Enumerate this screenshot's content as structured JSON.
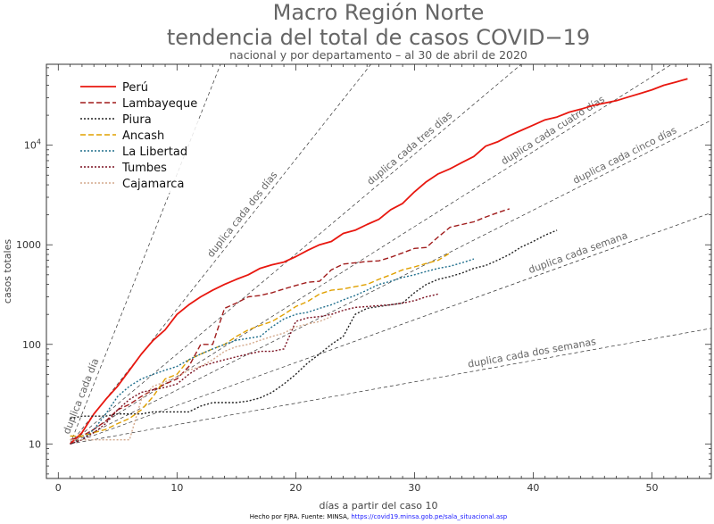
{
  "chart_data": {
    "type": "line",
    "title": "Macro Región Norte",
    "title2": "tendencia del total de casos COVID−19",
    "subtitle": "nacional y por departamento – al 30 de abril de 2020",
    "xlabel": "días a partir del caso 10",
    "ylabel": "casos totales",
    "xlim": [
      -1,
      55
    ],
    "ylim": [
      4.5,
      65000
    ],
    "yscale": "log",
    "xticks": [
      0,
      10,
      20,
      30,
      40,
      50
    ],
    "yticks": [
      {
        "value": 10,
        "label": "10"
      },
      {
        "value": 100,
        "label": "100"
      },
      {
        "value": 1000,
        "label": "1000"
      },
      {
        "value": 10000,
        "label": "10",
        "exponent": "4"
      }
    ],
    "grid": false,
    "legend": "top-left",
    "reference_lines": [
      {
        "label": "duplica cada día",
        "doubling_days": 1
      },
      {
        "label": "duplica cada dos días",
        "doubling_days": 2
      },
      {
        "label": "duplica cada tres días",
        "doubling_days": 3
      },
      {
        "label": "duplica cada cuatro días",
        "doubling_days": 4
      },
      {
        "label": "duplica cada cinco días",
        "doubling_days": 5
      },
      {
        "label": "duplica cada semana",
        "doubling_days": 7
      },
      {
        "label": "duplica cada dos semanas",
        "doubling_days": 14
      }
    ],
    "series": [
      {
        "name": "Perú",
        "color": "#e8170f",
        "dash": "solid",
        "x": [
          1,
          2,
          3,
          4,
          5,
          6,
          7,
          8,
          9,
          10,
          11,
          12,
          13,
          14,
          15,
          16,
          17,
          18,
          19,
          20,
          21,
          22,
          23,
          24,
          25,
          26,
          27,
          28,
          29,
          30,
          31,
          32,
          33,
          34,
          35,
          36,
          37,
          38,
          39,
          40,
          41,
          42,
          43,
          44,
          45,
          46,
          47,
          48,
          49,
          50,
          51,
          52,
          53
        ],
        "y": [
          10,
          13,
          20,
          28,
          38,
          55,
          80,
          110,
          140,
          200,
          250,
          300,
          350,
          400,
          450,
          500,
          580,
          630,
          670,
          760,
          880,
          1000,
          1080,
          1300,
          1400,
          1600,
          1800,
          2250,
          2600,
          3400,
          4300,
          5150,
          5800,
          6700,
          7700,
          9800,
          10800,
          12500,
          14100,
          15900,
          18000,
          19200,
          21400,
          23000,
          25000,
          26500,
          28000,
          30500,
          33000,
          36000,
          40000,
          43000,
          46500
        ]
      },
      {
        "name": "Lambayeque",
        "color": "#a01c1c",
        "dash": "6 3",
        "x": [
          1,
          2,
          3,
          4,
          5,
          6,
          7,
          8,
          9,
          10,
          11,
          12,
          13,
          14,
          15,
          16,
          17,
          18,
          19,
          20,
          21,
          22,
          23,
          24,
          25,
          26,
          27,
          28,
          29,
          30,
          31,
          32,
          33,
          34,
          35,
          36,
          37,
          38
        ],
        "y": [
          11,
          12,
          14,
          17,
          22,
          25,
          30,
          35,
          40,
          45,
          60,
          100,
          100,
          230,
          260,
          300,
          310,
          330,
          360,
          390,
          420,
          430,
          560,
          640,
          660,
          680,
          690,
          750,
          830,
          920,
          940,
          1200,
          1500,
          1600,
          1700,
          1900,
          2100,
          2300
        ]
      },
      {
        "name": "Piura",
        "color": "#222222",
        "dash": "2 2",
        "x": [
          1,
          2,
          3,
          4,
          5,
          6,
          7,
          8,
          9,
          10,
          11,
          12,
          13,
          14,
          15,
          16,
          17,
          18,
          19,
          20,
          21,
          22,
          23,
          24,
          25,
          26,
          27,
          28,
          29,
          30,
          31,
          32,
          33,
          34,
          35,
          36,
          37,
          38,
          39,
          40,
          41,
          42
        ],
        "y": [
          18,
          19,
          19,
          19,
          20,
          20,
          20,
          21,
          21,
          21,
          21,
          24,
          26,
          26,
          26,
          27,
          29,
          33,
          40,
          50,
          65,
          80,
          100,
          120,
          200,
          230,
          240,
          250,
          260,
          330,
          400,
          450,
          480,
          520,
          580,
          620,
          700,
          800,
          950,
          1080,
          1250,
          1400
        ]
      },
      {
        "name": "Ancash",
        "color": "#e0a000",
        "dash": "6 3",
        "x": [
          1,
          2,
          3,
          4,
          5,
          6,
          7,
          8,
          9,
          10,
          11,
          12,
          13,
          14,
          15,
          16,
          17,
          18,
          19,
          20,
          21,
          22,
          23,
          24,
          25,
          26,
          27,
          28,
          29,
          30,
          31,
          32,
          33
        ],
        "y": [
          12,
          12,
          13,
          14,
          16,
          18,
          22,
          30,
          45,
          50,
          70,
          80,
          90,
          100,
          120,
          140,
          155,
          170,
          200,
          240,
          270,
          320,
          350,
          360,
          380,
          400,
          450,
          500,
          560,
          600,
          650,
          700,
          830
        ]
      },
      {
        "name": "La Libertad",
        "color": "#1f6e8c",
        "dash": "2 2",
        "x": [
          1,
          2,
          3,
          4,
          5,
          6,
          7,
          8,
          9,
          10,
          11,
          12,
          13,
          14,
          15,
          16,
          17,
          18,
          19,
          20,
          21,
          22,
          23,
          24,
          25,
          26,
          27,
          28,
          29,
          30,
          31,
          32,
          33,
          34,
          35
        ],
        "y": [
          10,
          11,
          14,
          20,
          30,
          38,
          45,
          50,
          55,
          60,
          70,
          80,
          90,
          100,
          110,
          115,
          120,
          150,
          180,
          200,
          210,
          230,
          250,
          280,
          310,
          350,
          400,
          430,
          470,
          500,
          540,
          580,
          610,
          660,
          720
        ]
      },
      {
        "name": "Tumbes",
        "color": "#7a1020",
        "dash": "2 2",
        "x": [
          1,
          2,
          3,
          4,
          5,
          6,
          7,
          8,
          9,
          10,
          11,
          12,
          13,
          14,
          15,
          16,
          17,
          18,
          19,
          20,
          21,
          22,
          23,
          24,
          25,
          26,
          27,
          28,
          29,
          30,
          31,
          32
        ],
        "y": [
          10,
          11,
          13,
          16,
          22,
          28,
          33,
          35,
          37,
          40,
          50,
          60,
          65,
          70,
          75,
          80,
          85,
          85,
          90,
          170,
          185,
          190,
          200,
          220,
          235,
          240,
          245,
          250,
          260,
          275,
          300,
          320
        ]
      },
      {
        "name": "Cajamarca",
        "color": "#d4a98c",
        "dash": "2 2",
        "x": [
          1,
          2,
          3,
          4,
          5,
          6,
          7,
          8,
          9,
          10,
          11,
          12,
          13,
          14,
          15,
          16,
          17,
          18,
          19,
          20,
          21,
          22,
          23
        ],
        "y": [
          11,
          11,
          11,
          11,
          11,
          11,
          28,
          38,
          42,
          47,
          55,
          60,
          70,
          85,
          95,
          100,
          110,
          120,
          130,
          150,
          160,
          170,
          190
        ]
      }
    ]
  },
  "footer": {
    "text": "Hecho por FJRA. Fuente: MINSA, ",
    "link": "https://covid19.minsa.gob.pe/sala_situacional.asp"
  }
}
